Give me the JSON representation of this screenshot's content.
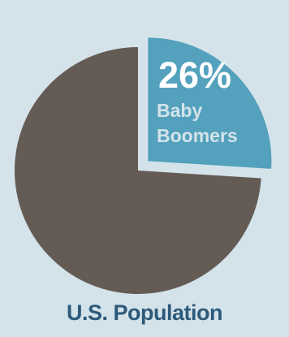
{
  "chart_data": {
    "type": "pie",
    "title": "U.S. Population",
    "slices": [
      {
        "label": "Baby Boomers",
        "value": 26,
        "value_label": "26%",
        "color": "#53a1bd",
        "exploded": true
      },
      {
        "label": "",
        "value": 74,
        "value_label": "",
        "color": "#645b55",
        "exploded": false
      }
    ]
  },
  "colors": {
    "background": "#d4e3ea",
    "highlight_slice": "#53a1bd",
    "rest_slice": "#645b55",
    "caption_text": "#2d5a7a"
  }
}
